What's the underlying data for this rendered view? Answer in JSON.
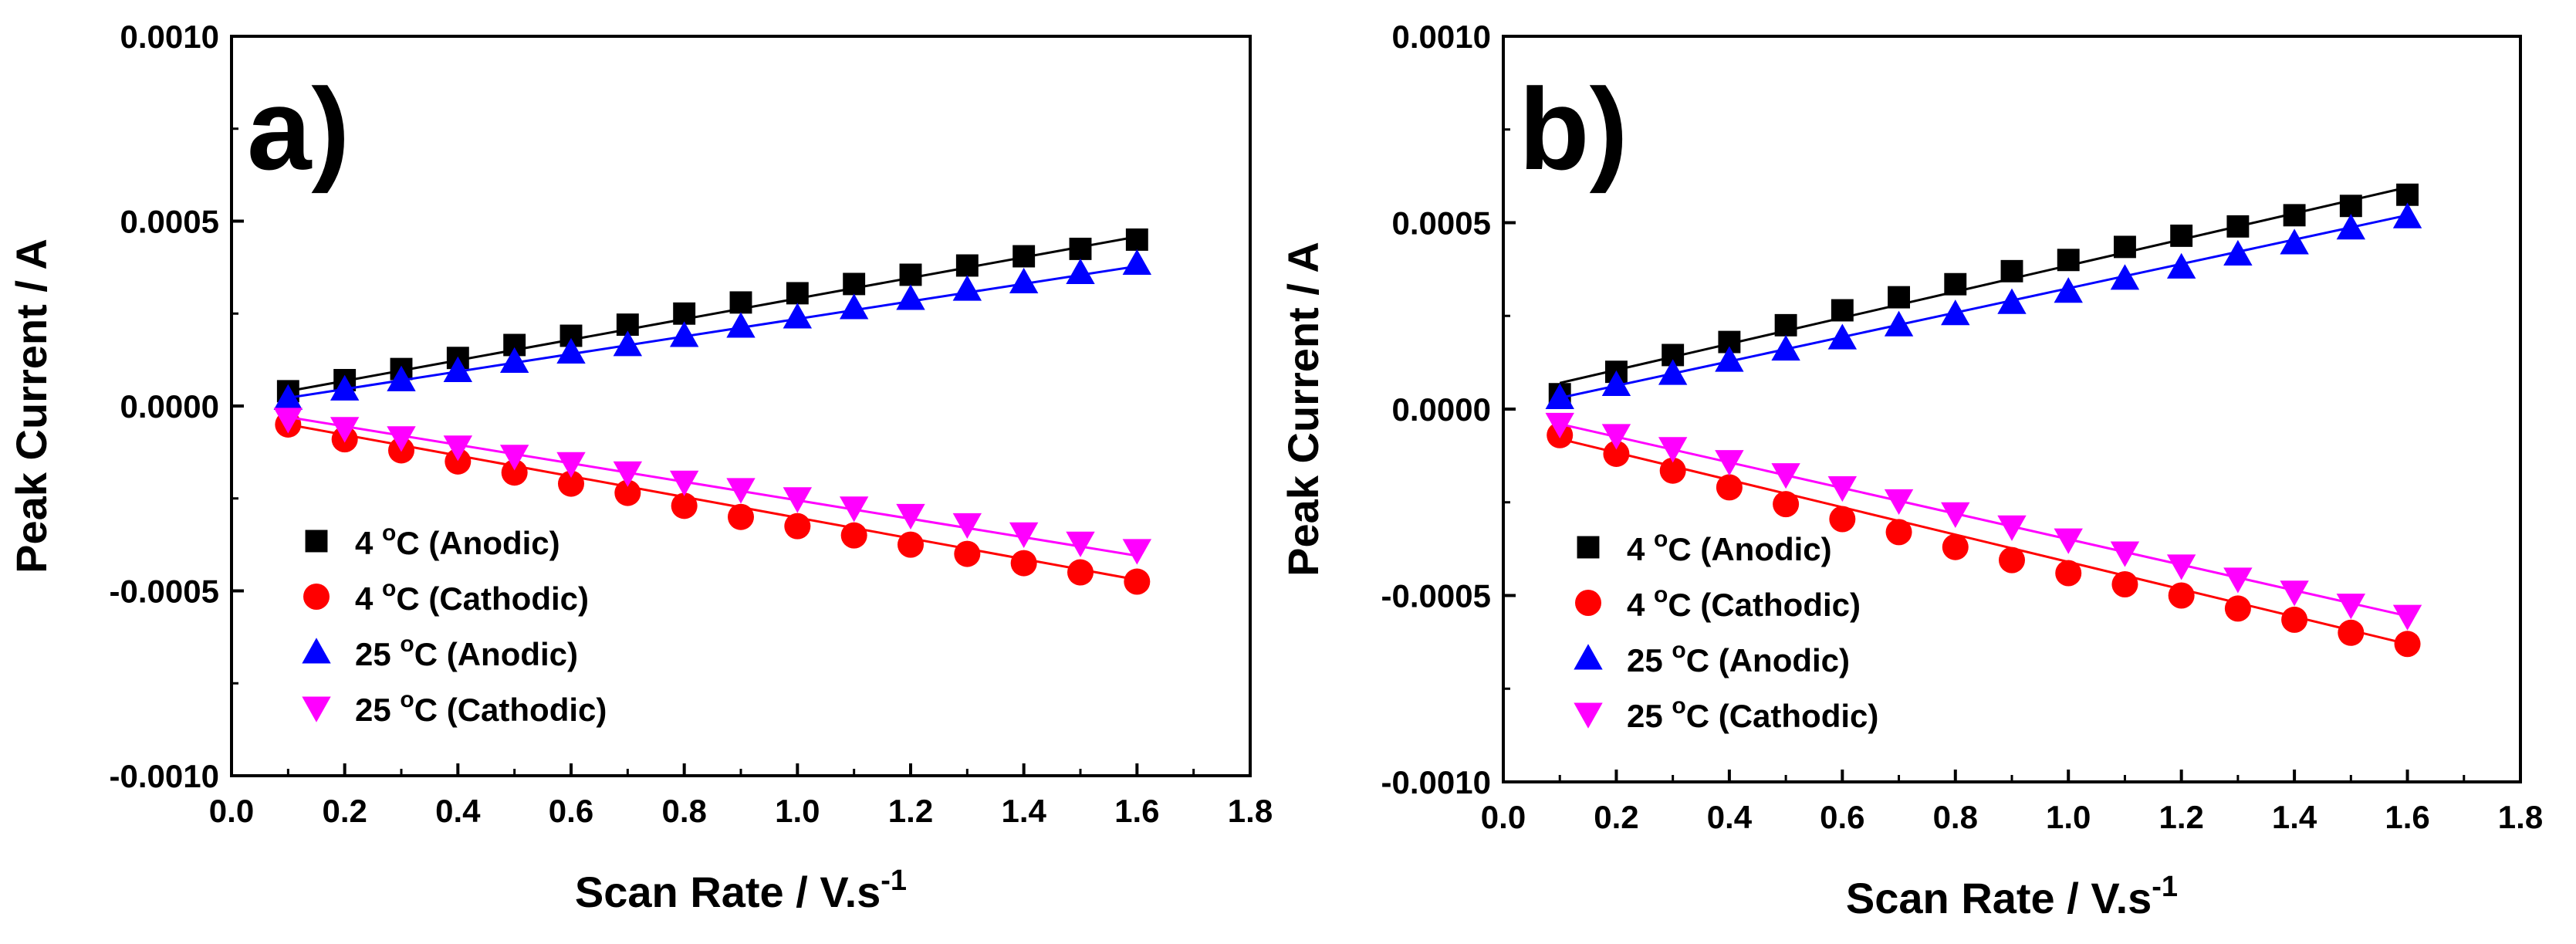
{
  "chart_data": [
    {
      "type": "scatter",
      "panel_label": "a)",
      "xlabel": "Scan Rate / V.s",
      "xlabel_superscript": "-1",
      "ylabel": "Peak Current / A",
      "xlim": [
        0.0,
        1.8
      ],
      "ylim": [
        -0.001,
        0.001
      ],
      "xticks": [
        "0.0",
        "0.2",
        "0.4",
        "0.6",
        "0.8",
        "1.0",
        "1.2",
        "1.4",
        "1.6",
        "1.8"
      ],
      "yticks": [
        "-0.0010",
        "-0.0005",
        "0.0000",
        "0.0005",
        "0.0010"
      ],
      "legend_position": "bottom-left",
      "x": [
        0.1,
        0.2,
        0.3,
        0.4,
        0.5,
        0.6,
        0.7,
        0.8,
        0.9,
        1.0,
        1.1,
        1.2,
        1.3,
        1.4,
        1.5,
        1.6
      ],
      "series": [
        {
          "name": "4 °C (Anodic)",
          "legend": {
            "prefix": "4 ",
            "sup": "o",
            "suffix": "C (Anodic)"
          },
          "marker": "square",
          "color": "#000000",
          "values": [
            4e-05,
            7e-05,
            0.0001,
            0.00013,
            0.000165,
            0.00019,
            0.00022,
            0.00025,
            0.00028,
            0.000305,
            0.00033,
            0.000355,
            0.00038,
            0.000405,
            0.000425,
            0.00045
          ],
          "fit": [
            4e-05,
            0.000458
          ]
        },
        {
          "name": "4 °C (Cathodic)",
          "legend": {
            "prefix": "4 ",
            "sup": "o",
            "suffix": "C (Cathodic)"
          },
          "marker": "circle",
          "color": "#ff0000",
          "values": [
            -5e-05,
            -9e-05,
            -0.00012,
            -0.00015,
            -0.00018,
            -0.00021,
            -0.000235,
            -0.00027,
            -0.0003,
            -0.000325,
            -0.00035,
            -0.000375,
            -0.0004,
            -0.000425,
            -0.00045,
            -0.000475
          ],
          "fit": [
            -5e-05,
            -0.00047
          ]
        },
        {
          "name": "25 °C (Anodic)",
          "legend": {
            "prefix": "25 ",
            "sup": "o",
            "suffix": "C (Anodic)"
          },
          "marker": "triangle-up",
          "color": "#0000ff",
          "values": [
            2e-05,
            4.5e-05,
            7e-05,
            9.5e-05,
            0.00012,
            0.000145,
            0.000165,
            0.00019,
            0.000215,
            0.00024,
            0.000265,
            0.00029,
            0.000315,
            0.000335,
            0.00036,
            0.000385
          ],
          "fit": [
            2.2e-05,
            0.000378
          ]
        },
        {
          "name": "25 °C (Cathodic)",
          "legend": {
            "prefix": "25 ",
            "sup": "o",
            "suffix": "C (Cathodic)"
          },
          "marker": "triangle-down",
          "color": "#ff00ff",
          "values": [
            -3.5e-05,
            -6e-05,
            -8.5e-05,
            -0.00011,
            -0.000135,
            -0.000155,
            -0.00018,
            -0.000205,
            -0.000225,
            -0.00025,
            -0.000275,
            -0.000295,
            -0.00032,
            -0.000345,
            -0.00037,
            -0.00039
          ],
          "fit": [
            -3e-05,
            -0.000405
          ]
        }
      ]
    },
    {
      "type": "scatter",
      "panel_label": "b)",
      "xlabel": "Scan Rate / V.s",
      "xlabel_superscript": "-1",
      "ylabel": "Peak Current / A",
      "xlim": [
        0.0,
        1.8
      ],
      "ylim": [
        -0.001,
        0.001
      ],
      "xticks": [
        "0.0",
        "0.2",
        "0.4",
        "0.6",
        "0.8",
        "1.0",
        "1.2",
        "1.4",
        "1.6",
        "1.8"
      ],
      "yticks": [
        "-0.0010",
        "-0.0005",
        "0.0000",
        "0.0005",
        "0.0010"
      ],
      "legend_position": "bottom-left",
      "x": [
        0.1,
        0.2,
        0.3,
        0.4,
        0.5,
        0.6,
        0.7,
        0.8,
        0.9,
        1.0,
        1.1,
        1.2,
        1.3,
        1.4,
        1.5,
        1.6
      ],
      "series": [
        {
          "name": "4 °C (Anodic)",
          "legend": {
            "prefix": "4 ",
            "sup": "o",
            "suffix": "C (Anodic)"
          },
          "marker": "square",
          "color": "#000000",
          "values": [
            4e-05,
            0.0001,
            0.000145,
            0.00018,
            0.000225,
            0.000265,
            0.0003,
            0.000335,
            0.00037,
            0.0004,
            0.000435,
            0.000465,
            0.00049,
            0.00052,
            0.000545,
            0.000575
          ],
          "fit": [
            7e-05,
            0.000595
          ]
        },
        {
          "name": "4 °C (Cathodic)",
          "legend": {
            "prefix": "4 ",
            "sup": "o",
            "suffix": "C (Cathodic)"
          },
          "marker": "circle",
          "color": "#ff0000",
          "values": [
            -7e-05,
            -0.00012,
            -0.000165,
            -0.00021,
            -0.000255,
            -0.000295,
            -0.00033,
            -0.00037,
            -0.000405,
            -0.00044,
            -0.00047,
            -0.0005,
            -0.000535,
            -0.000565,
            -0.0006,
            -0.00063
          ],
          "fit": [
            -8e-05,
            -0.00063
          ]
        },
        {
          "name": "25 °C (Anodic)",
          "legend": {
            "prefix": "25 ",
            "sup": "o",
            "suffix": "C (Anodic)"
          },
          "marker": "triangle-up",
          "color": "#0000ff",
          "values": [
            3e-05,
            6.5e-05,
            9.5e-05,
            0.00013,
            0.00016,
            0.00019,
            0.000225,
            0.000255,
            0.000285,
            0.000315,
            0.00035,
            0.00038,
            0.000415,
            0.000445,
            0.000485,
            0.000515
          ],
          "fit": [
            3e-05,
            0.00052
          ]
        },
        {
          "name": "25 °C (Cathodic)",
          "legend": {
            "prefix": "25 ",
            "sup": "o",
            "suffix": "C (Cathodic)"
          },
          "marker": "triangle-down",
          "color": "#ff00ff",
          "values": [
            -4e-05,
            -7e-05,
            -0.000105,
            -0.00014,
            -0.000175,
            -0.00021,
            -0.000245,
            -0.00028,
            -0.000315,
            -0.00035,
            -0.000385,
            -0.00042,
            -0.000455,
            -0.00049,
            -0.000525,
            -0.000555
          ],
          "fit": [
            -4e-05,
            -0.000555
          ]
        }
      ]
    }
  ]
}
